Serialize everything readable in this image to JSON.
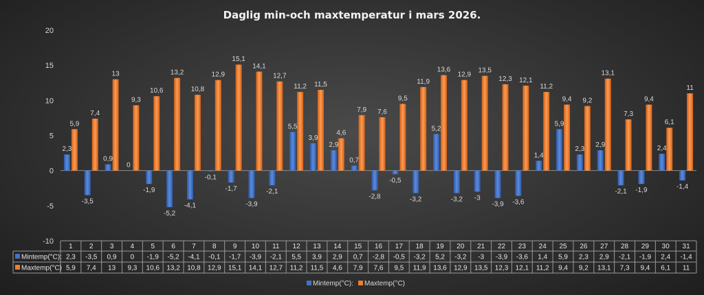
{
  "chart_data": {
    "type": "bar",
    "title": "Daglig min-och maxtemperatur i mars 2026.",
    "xlabel": "",
    "ylabel": "",
    "ylim": [
      -10,
      20
    ],
    "yticks": [
      20,
      15,
      10,
      5,
      0,
      -5,
      -10
    ],
    "grid": false,
    "legend_position": "bottom",
    "data_table": true,
    "categories": [
      "1",
      "2",
      "3",
      "4",
      "5",
      "6",
      "7",
      "8",
      "9",
      "10",
      "11",
      "12",
      "13",
      "14",
      "15",
      "16",
      "17",
      "18",
      "19",
      "20",
      "21",
      "22",
      "23",
      "24",
      "25",
      "26",
      "27",
      "28",
      "29",
      "30",
      "31"
    ],
    "series": [
      {
        "name": "Mintemp(°C):",
        "color": "#4472C4",
        "values": [
          2.3,
          -3.5,
          0.9,
          0,
          -1.9,
          -5.2,
          -4.1,
          -0.1,
          -1.7,
          -3.9,
          -2.1,
          5.5,
          3.9,
          2.9,
          0.7,
          -2.8,
          -0.5,
          -3.2,
          5.2,
          -3.2,
          -3,
          -3.9,
          -3.6,
          1.4,
          5.9,
          2.3,
          2.9,
          -2.1,
          -1.9,
          2.4,
          -1.4
        ]
      },
      {
        "name": "Maxtemp(°C)",
        "color": "#ED7D31",
        "values": [
          5.9,
          7.4,
          13,
          9.3,
          10.6,
          13.2,
          10.8,
          12.9,
          15.1,
          14.1,
          12.7,
          11.2,
          11.5,
          4.6,
          7.9,
          7.6,
          9.5,
          11.9,
          13.6,
          12.9,
          13.5,
          12.3,
          12.1,
          11.2,
          9.4,
          9.2,
          13.1,
          7.3,
          9.4,
          6.1,
          11
        ]
      }
    ]
  }
}
